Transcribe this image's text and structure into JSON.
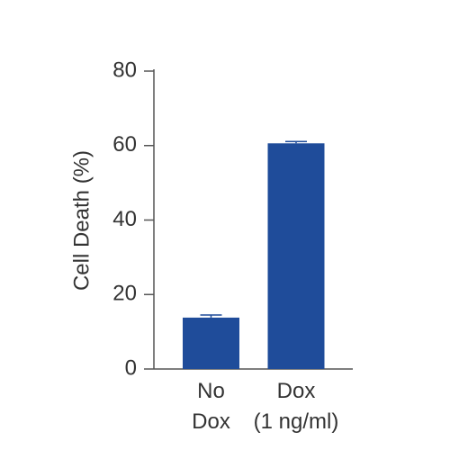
{
  "chart_data": {
    "type": "bar",
    "ylabel": "Cell Death (%)",
    "categories": [
      "No Dox",
      "Dox (1 ng/ml)"
    ],
    "values": [
      13.8,
      60.6
    ],
    "errors": [
      0.7,
      0.5
    ],
    "color": "#1f4c9a",
    "ylim": [
      0,
      80
    ],
    "yticks": [
      0,
      20,
      40,
      60,
      80
    ],
    "grid": false
  }
}
